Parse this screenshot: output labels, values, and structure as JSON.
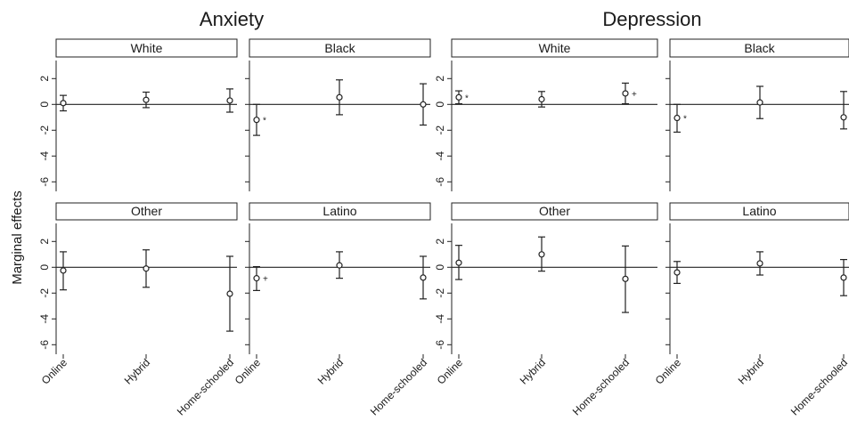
{
  "figure": {
    "y_axis_title": "Marginal effects",
    "titles": [
      "Anxiety",
      "Depression"
    ]
  },
  "chart_data": [
    {
      "type": "scatter",
      "title": "Anxiety",
      "panel": "White",
      "categories": [
        "Online",
        "Hybrid",
        "Home-schooled"
      ],
      "values": [
        0.1,
        0.35,
        0.3
      ],
      "ci_low": [
        -0.5,
        -0.25,
        -0.6
      ],
      "ci_high": [
        0.7,
        0.95,
        1.2
      ],
      "significance": [
        "",
        "",
        ""
      ],
      "ylabel": "Marginal effects",
      "yticks": [
        2,
        0,
        -2,
        -4,
        -6
      ],
      "ylim": [
        -6.6,
        3.4
      ]
    },
    {
      "type": "scatter",
      "title": "Anxiety",
      "panel": "Black",
      "categories": [
        "Online",
        "Hybrid",
        "Home-schooled"
      ],
      "values": [
        -1.2,
        0.55,
        0.0
      ],
      "ci_low": [
        -2.4,
        -0.8,
        -1.6
      ],
      "ci_high": [
        0.0,
        1.9,
        1.6
      ],
      "significance": [
        "*",
        "",
        ""
      ],
      "yticks": [
        2,
        0,
        -2,
        -4,
        -6
      ],
      "ylim": [
        -6.6,
        3.4
      ]
    },
    {
      "type": "scatter",
      "title": "Anxiety",
      "panel": "Other",
      "categories": [
        "Online",
        "Hybrid",
        "Home-schooled"
      ],
      "values": [
        -0.25,
        -0.1,
        -2.05
      ],
      "ci_low": [
        -1.75,
        -1.55,
        -4.95
      ],
      "ci_high": [
        1.2,
        1.35,
        0.85
      ],
      "significance": [
        "",
        "",
        ""
      ],
      "ylabel": "Marginal effects",
      "yticks": [
        2,
        0,
        -2,
        -4,
        -6
      ],
      "ylim": [
        -6.6,
        3.4
      ]
    },
    {
      "type": "scatter",
      "title": "Anxiety",
      "panel": "Latino",
      "categories": [
        "Online",
        "Hybrid",
        "Home-schooled"
      ],
      "values": [
        -0.85,
        0.15,
        -0.8
      ],
      "ci_low": [
        -1.8,
        -0.85,
        -2.45
      ],
      "ci_high": [
        0.05,
        1.2,
        0.85
      ],
      "significance": [
        "+",
        "",
        ""
      ],
      "yticks": [
        2,
        0,
        -2,
        -4,
        -6
      ],
      "ylim": [
        -6.6,
        3.4
      ]
    },
    {
      "type": "scatter",
      "title": "Depression",
      "panel": "White",
      "categories": [
        "Online",
        "Hybrid",
        "Home-schooled"
      ],
      "values": [
        0.55,
        0.4,
        0.85
      ],
      "ci_low": [
        0.05,
        -0.2,
        0.05
      ],
      "ci_high": [
        1.05,
        1.0,
        1.65
      ],
      "significance": [
        "*",
        "",
        "+"
      ],
      "yticks": [
        2,
        0,
        -2,
        -4,
        -6
      ],
      "ylim": [
        -6.6,
        3.4
      ]
    },
    {
      "type": "scatter",
      "title": "Depression",
      "panel": "Black",
      "categories": [
        "Online",
        "Hybrid",
        "Home-schooled"
      ],
      "values": [
        -1.05,
        0.15,
        -1.0
      ],
      "ci_low": [
        -2.15,
        -1.1,
        -1.9
      ],
      "ci_high": [
        0.0,
        1.4,
        1.0
      ],
      "significance": [
        "*",
        "",
        ""
      ],
      "yticks": [
        2,
        0,
        -2,
        -4,
        -6
      ],
      "ylim": [
        -6.6,
        3.4
      ]
    },
    {
      "type": "scatter",
      "title": "Depression",
      "panel": "Other",
      "categories": [
        "Online",
        "Hybrid",
        "Home-schooled"
      ],
      "values": [
        0.35,
        1.0,
        -0.9
      ],
      "ci_low": [
        -0.95,
        -0.3,
        -3.5
      ],
      "ci_high": [
        1.7,
        2.35,
        1.65
      ],
      "significance": [
        "",
        "",
        ""
      ],
      "yticks": [
        2,
        0,
        -2,
        -4,
        -6
      ],
      "ylim": [
        -6.6,
        3.4
      ]
    },
    {
      "type": "scatter",
      "title": "Depression",
      "panel": "Latino",
      "categories": [
        "Online",
        "Hybrid",
        "Home-schooled"
      ],
      "values": [
        -0.4,
        0.3,
        -0.8
      ],
      "ci_low": [
        -1.25,
        -0.6,
        -2.2
      ],
      "ci_high": [
        0.45,
        1.2,
        0.6
      ],
      "significance": [
        "",
        "",
        ""
      ],
      "yticks": [
        2,
        0,
        -2,
        -4,
        -6
      ],
      "ylim": [
        -6.6,
        3.4
      ]
    }
  ]
}
